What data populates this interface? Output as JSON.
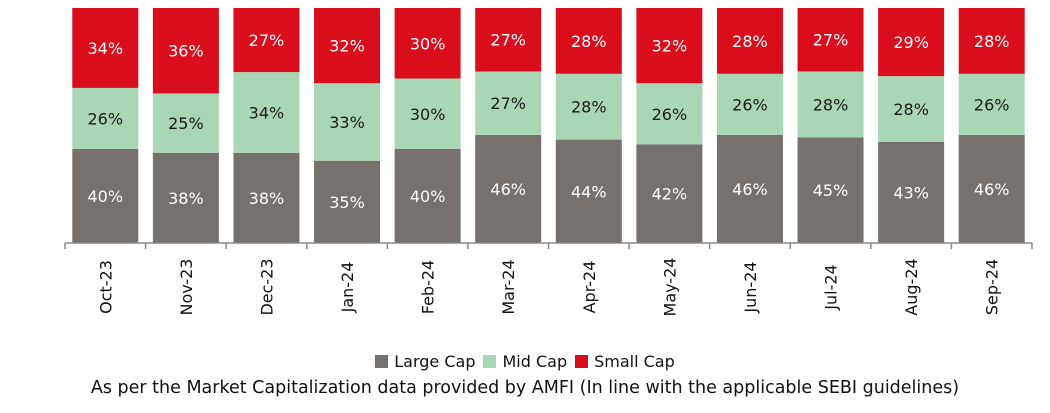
{
  "chart_data": {
    "type": "bar",
    "stacked": true,
    "categories": [
      "Oct-23",
      "Nov-23",
      "Dec-23",
      "Jan-24",
      "Feb-24",
      "Mar-24",
      "Apr-24",
      "May-24",
      "Jun-24",
      "Jul-24",
      "Aug-24",
      "Sep-24"
    ],
    "series": [
      {
        "name": "Large Cap",
        "color": "#77716d",
        "values": [
          40,
          38,
          38,
          35,
          40,
          46,
          44,
          42,
          46,
          45,
          43,
          46
        ]
      },
      {
        "name": "Mid Cap",
        "color": "#a9d6b5",
        "values": [
          26,
          25,
          34,
          33,
          30,
          27,
          28,
          26,
          26,
          28,
          28,
          26
        ]
      },
      {
        "name": "Small Cap",
        "color": "#d90d1c",
        "values": [
          34,
          36,
          27,
          32,
          30,
          27,
          28,
          32,
          28,
          27,
          29,
          28
        ]
      }
    ],
    "value_suffix": "%",
    "legend_position": "bottom",
    "grid": false
  },
  "footnote": "As per the Market Capitalization data provided by AMFI (In line with the applicable SEBI guidelines)"
}
